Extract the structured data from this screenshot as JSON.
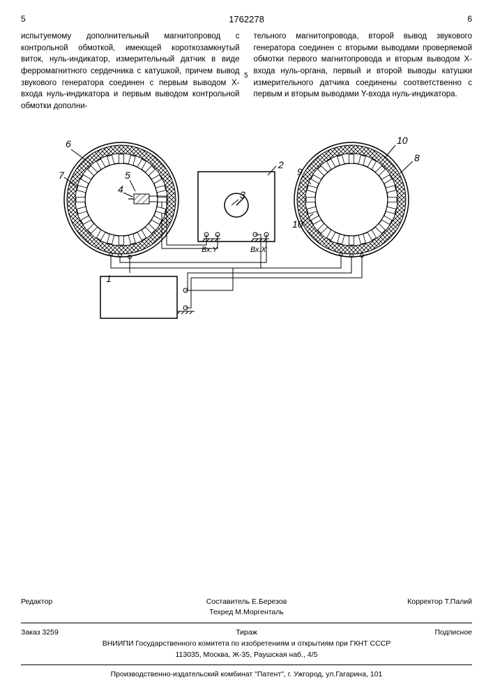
{
  "header": {
    "page_left": "5",
    "patent_number": "1762278",
    "page_right": "6",
    "line_num": "5"
  },
  "text": {
    "col1": "испытуемому дополнительный магнитопровод с контрольной обмоткой, имеющей короткозамкнутый виток, нуль-индикатор, измерительный датчик в виде ферромагнитного сердечника с катушкой, причем вывод звукового генератора соединен с первым выводом Х-входа нуль-индикатора и первым выводом контрольной обмотки дополни-",
    "col2": "тельного магнитопровода, второй вывод звукового генератора соединен с вторыми выводами проверяемой обмотки первого магнитопровода и вторым выводом Х-входа нуль-органа, первый и второй выводы катушки измерительного датчика соединены соответственно с первым и вторым выводами Y-входа нуль-индикатора."
  },
  "figure": {
    "labels": {
      "l1": "1",
      "l2": "2",
      "l3": "3",
      "l4": "4",
      "l5": "5",
      "l6": "6",
      "l7": "7",
      "l8": "8",
      "l9": "9",
      "l10": "10",
      "vxy": "Вх.Y",
      "vxx": "Вх.X"
    },
    "colors": {
      "stroke": "#000000",
      "fill_bg": "#ffffff",
      "hatch": "#000000"
    }
  },
  "footer": {
    "compiler": "Составитель  Е.Березов",
    "editor": "Редактор",
    "techred": "Техред М.Моргенталь",
    "corrector": "Корректор  Т.Палий",
    "order": "Заказ 3259",
    "tirazh": "Тираж",
    "podpis": "Подписное",
    "org": "ВНИИПИ Государственного комитета по изобретениям и открытиям при ГКНТ СССР",
    "addr": "113035, Москва, Ж-35, Раушская наб., 4/5",
    "printer": "Производственно-издательский комбинат \"Патент\", г. Ужгород, ул.Гагарина, 101"
  }
}
